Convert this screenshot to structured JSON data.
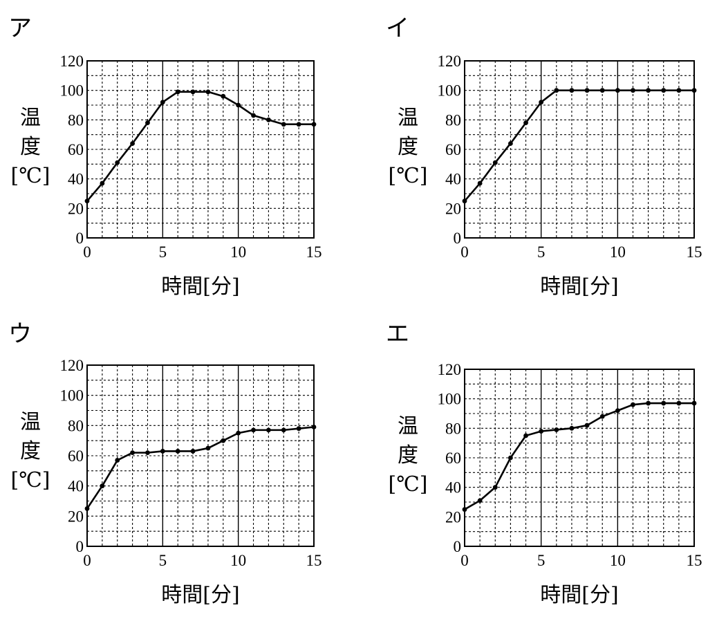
{
  "chart_data": [
    {
      "type": "line",
      "panel_label": "ア",
      "xlabel": "時間[分]",
      "ylabel": [
        "温",
        "度",
        "[℃]"
      ],
      "xlim": [
        0,
        15
      ],
      "ylim": [
        0,
        120
      ],
      "xticks": [
        "0",
        "5",
        "10",
        "15"
      ],
      "yticks": [
        "0",
        "20",
        "40",
        "60",
        "80",
        "100",
        "120"
      ],
      "grid": true,
      "x": [
        0,
        1,
        2,
        3,
        4,
        5,
        6,
        7,
        8,
        9,
        10,
        11,
        12,
        13,
        14,
        15
      ],
      "y": [
        25,
        37,
        51,
        64,
        78,
        92,
        99,
        99,
        99,
        96,
        90,
        83,
        80,
        77,
        77,
        77
      ]
    },
    {
      "type": "line",
      "panel_label": "イ",
      "xlabel": "時間[分]",
      "ylabel": [
        "温",
        "度",
        "[℃]"
      ],
      "xlim": [
        0,
        15
      ],
      "ylim": [
        0,
        120
      ],
      "xticks": [
        "0",
        "5",
        "10",
        "15"
      ],
      "yticks": [
        "0",
        "20",
        "40",
        "60",
        "80",
        "100",
        "120"
      ],
      "grid": true,
      "x": [
        0,
        1,
        2,
        3,
        4,
        5,
        6,
        7,
        8,
        9,
        10,
        11,
        12,
        13,
        14,
        15
      ],
      "y": [
        25,
        37,
        51,
        64,
        78,
        92,
        100,
        100,
        100,
        100,
        100,
        100,
        100,
        100,
        100,
        100
      ]
    },
    {
      "type": "line",
      "panel_label": "ウ",
      "xlabel": "時間[分]",
      "ylabel": [
        "温",
        "度",
        "[℃]"
      ],
      "xlim": [
        0,
        15
      ],
      "ylim": [
        0,
        120
      ],
      "xticks": [
        "0",
        "5",
        "10",
        "15"
      ],
      "yticks": [
        "0",
        "20",
        "40",
        "60",
        "80",
        "100",
        "120"
      ],
      "grid": true,
      "x": [
        0,
        1,
        2,
        3,
        4,
        5,
        6,
        7,
        8,
        9,
        10,
        11,
        12,
        13,
        14,
        15
      ],
      "y": [
        25,
        40,
        57,
        62,
        62,
        63,
        63,
        63,
        65,
        70,
        75,
        77,
        77,
        77,
        78,
        79
      ]
    },
    {
      "type": "line",
      "panel_label": "エ",
      "xlabel": "時間[分]",
      "ylabel": [
        "温",
        "度",
        "[℃]"
      ],
      "xlim": [
        0,
        15
      ],
      "ylim": [
        0,
        120
      ],
      "xticks": [
        "0",
        "5",
        "10",
        "15"
      ],
      "yticks": [
        "0",
        "20",
        "40",
        "60",
        "80",
        "100",
        "120"
      ],
      "grid": true,
      "x": [
        0,
        1,
        2,
        3,
        4,
        5,
        6,
        7,
        8,
        9,
        10,
        11,
        12,
        13,
        14,
        15
      ],
      "y": [
        25,
        31,
        40,
        60,
        75,
        78,
        79,
        80,
        82,
        88,
        92,
        96,
        97,
        97,
        97,
        97
      ]
    }
  ]
}
